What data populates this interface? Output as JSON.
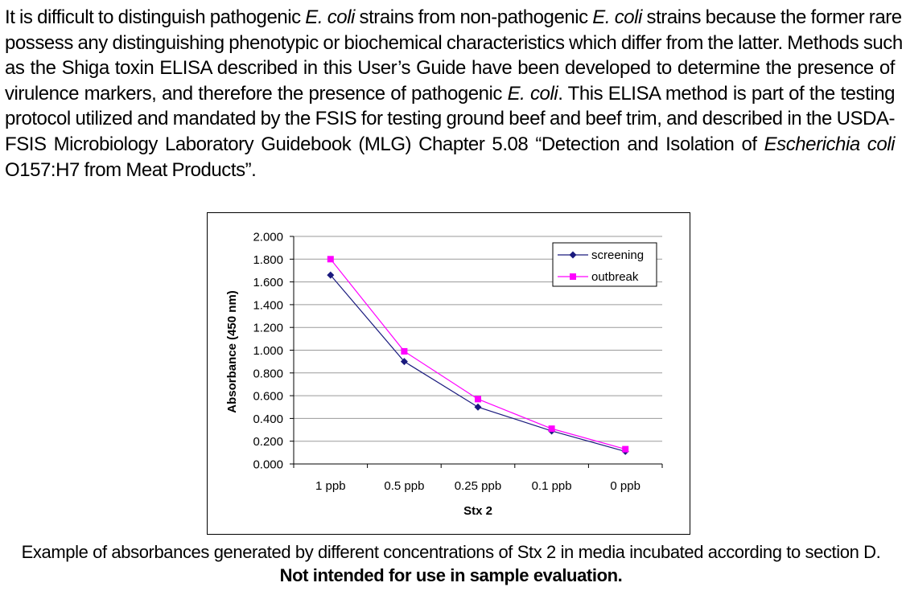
{
  "paragraph": {
    "lines": [
      [
        {
          "t": "It is difficult to distinguish pathogenic "
        },
        {
          "t": "E. coli",
          "i": true
        },
        {
          "t": " strains from non-pathogenic "
        },
        {
          "t": "E. coli",
          "i": true
        },
        {
          "t": " strains because the former rarely"
        }
      ],
      [
        {
          "t": "possess any distinguishing phenotypic or biochemical characteristics which differ from the latter. Methods such"
        }
      ],
      [
        {
          "t": "as the Shiga toxin ELISA described in this User’s Guide have been developed to determine the presence of"
        }
      ],
      [
        {
          "t": "virulence markers, and therefore the presence of pathogenic "
        },
        {
          "t": "E. coli",
          "i": true
        },
        {
          "t": ". This ELISA method is part of the testing"
        }
      ],
      [
        {
          "t": "protocol utilized and mandated by the FSIS for testing ground beef and beef trim, and described in the USDA-"
        }
      ],
      [
        {
          "t": "FSIS Microbiology Laboratory Guidebook (MLG) Chapter 5.08 “Detection and Isolation of "
        },
        {
          "t": "Escherichia coli",
          "i": true
        }
      ],
      [
        {
          "t": "O157:H7 from Meat Products”."
        }
      ]
    ]
  },
  "chart_data": {
    "type": "line",
    "title": "",
    "xlabel": "Stx 2",
    "ylabel": "Absorbance (450 nm)",
    "categories": [
      "1 ppb",
      "0.5 ppb",
      "0.25 ppb",
      "0.1 ppb",
      "0 ppb"
    ],
    "ylim": [
      0,
      2
    ],
    "yticks": [
      "0.000",
      "0.200",
      "0.400",
      "0.600",
      "0.800",
      "1.000",
      "1.200",
      "1.400",
      "1.600",
      "1.800",
      "2.000"
    ],
    "grid": true,
    "legend_position": "top-right",
    "series": [
      {
        "name": "screening",
        "color": "#1a1a7e",
        "marker": "diamond",
        "values": [
          1.66,
          0.9,
          0.5,
          0.29,
          0.11
        ]
      },
      {
        "name": "outbreak",
        "color": "#ff00ff",
        "marker": "square",
        "values": [
          1.8,
          0.99,
          0.57,
          0.31,
          0.13
        ]
      }
    ]
  },
  "caption": {
    "text": "Example of absorbances generated by different concentrations of Stx 2 in media incubated according to section D.",
    "bold": "Not intended for use in sample evaluation."
  }
}
